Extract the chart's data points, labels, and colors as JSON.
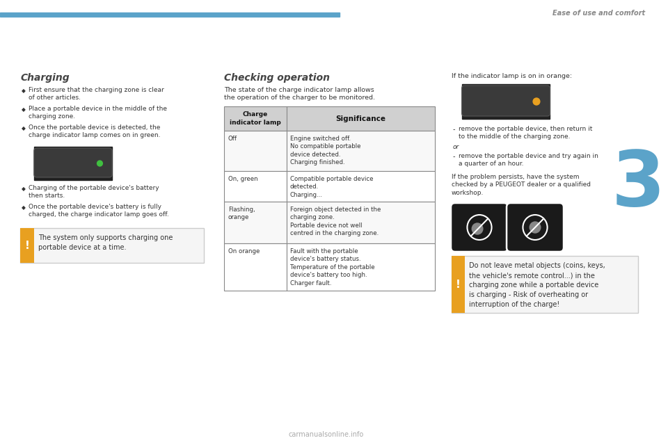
{
  "background_color": "#ffffff",
  "header_bar_color": "#5ba3c9",
  "header_text": "Ease of use and comfort",
  "header_text_color": "#888888",
  "chapter_number": "3",
  "chapter_number_color": "#5ba3c9",
  "left_title": "Charging",
  "left_title_color": "#444444",
  "left_bullets": [
    "First ensure that the charging zone is clear\nof other articles.",
    "Place a portable device in the middle of the\ncharging zone.",
    "Once the portable device is detected, the\ncharge indicator lamp comes on in green."
  ],
  "left_bullets2": [
    "Charging of the portable device's battery\nthen starts.",
    "Once the portable device's battery is fully\ncharged, the charge indicator lamp goes off."
  ],
  "warning_box_color": "#f5f5f5",
  "warning_border_color": "#cccccc",
  "warning_icon_color": "#e8a020",
  "warning_text_left": "The system only supports charging one\nportable device at a time.",
  "mid_title": "Checking operation",
  "mid_title_color": "#444444",
  "mid_intro": "The state of the charge indicator lamp allows\nthe operation of the charger to be monitored.",
  "table_header": [
    "Charge\nindicator lamp",
    "Significance"
  ],
  "table_rows": [
    [
      "Off",
      "Engine switched off.\nNo compatible portable\ndevice detected.\nCharging finished."
    ],
    [
      "On, green",
      "Compatible portable device\ndetected.\nCharging..."
    ],
    [
      "Flashing,\norange",
      "Foreign object detected in the\ncharging zone.\nPortable device not well\ncentred in the charging zone."
    ],
    [
      "On orange",
      "Fault with the portable\ndevice's battery status.\nTemperature of the portable\ndevice's battery too high.\nCharger fault."
    ]
  ],
  "table_header_bg": "#d0d0d0",
  "table_row_bg": "#ffffff",
  "table_border_color": "#888888",
  "right_intro": "If the indicator lamp is on in orange:",
  "right_bullets_top": [
    "remove the portable device, then return it\nto the middle of the charging zone."
  ],
  "right_or": "or",
  "right_bullets_bottom": [
    "remove the portable device and try again in\na quarter of an hour."
  ],
  "right_extra": "If the problem persists, have the system\nchecked by a PEUGEOT dealer or a qualified\nworkshop.",
  "warning_text_right": "Do not leave metal objects (coins, keys,\nthe vehicle's remote control...) in the\ncharging zone while a portable device\nis charging - Risk of overheating or\ninterruption of the charge!",
  "text_color": "#333333",
  "small_text_color": "#444444",
  "bullet_color": "#333333",
  "bullet_char": "◆"
}
